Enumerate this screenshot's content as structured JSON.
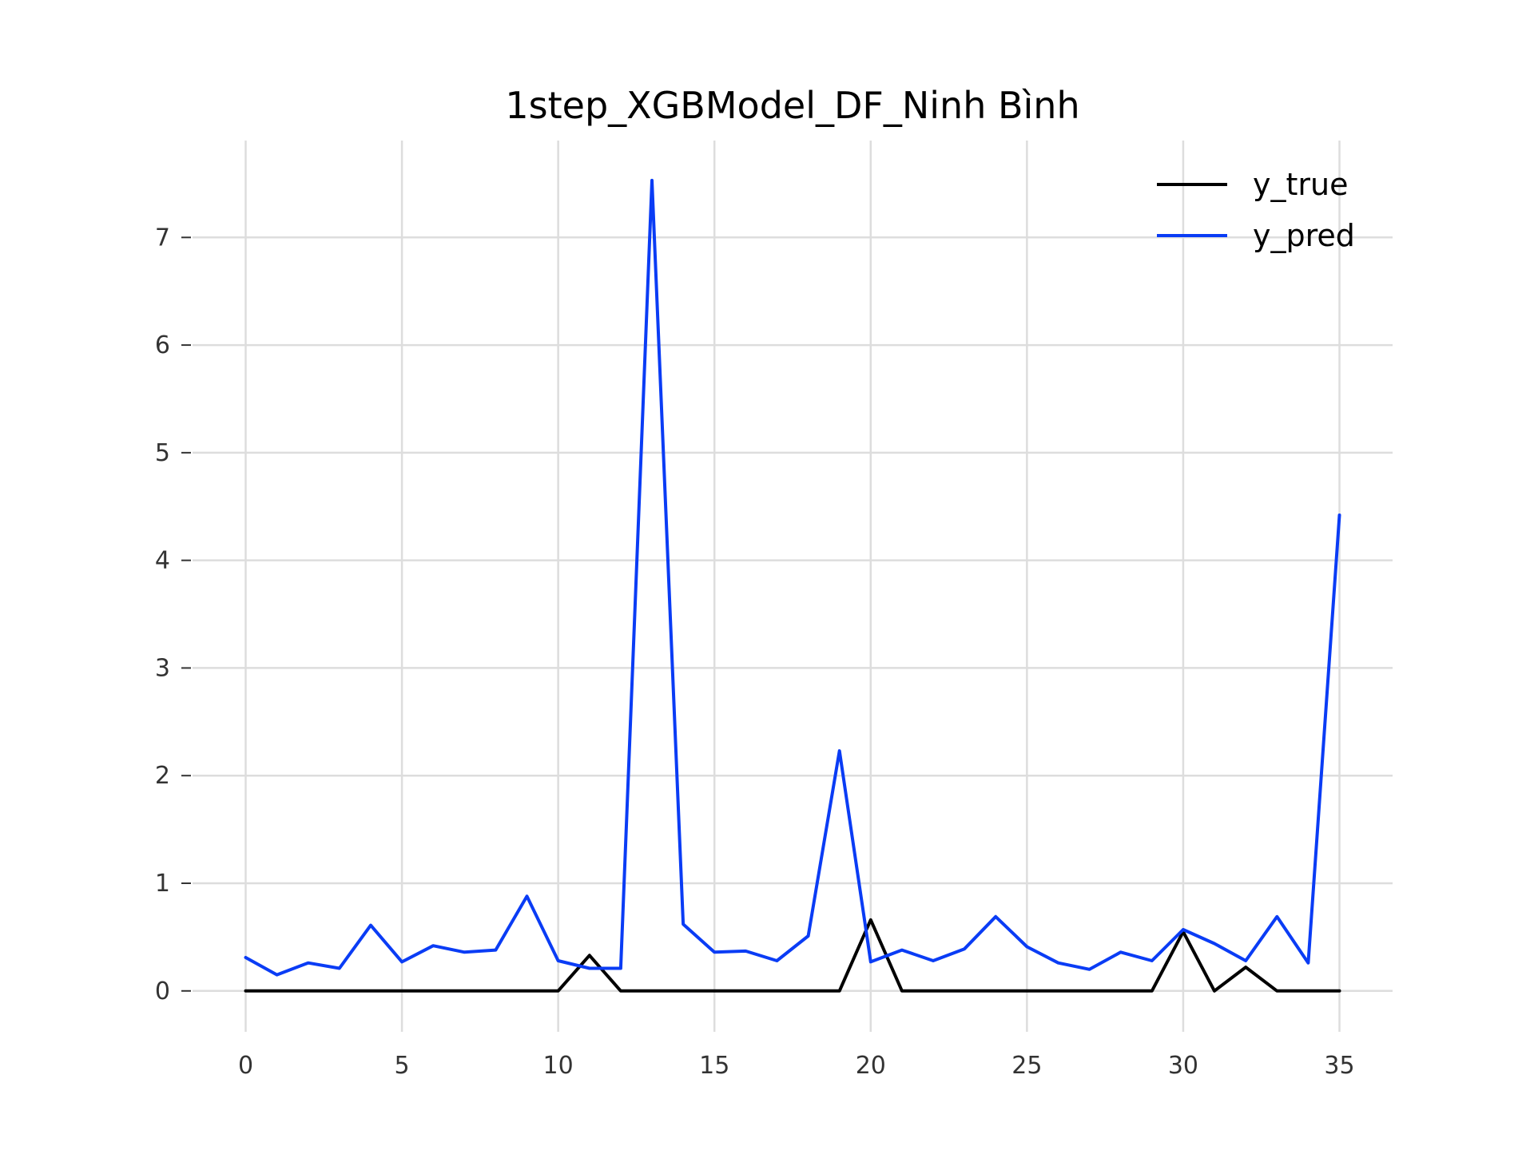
{
  "chart_data": {
    "type": "line",
    "title": "1step_XGBModel_DF_Ninh Bình",
    "xlabel": "",
    "ylabel": "",
    "xlim": [
      -1.7,
      36.7
    ],
    "ylim": [
      -0.38,
      7.9
    ],
    "x_ticks": [
      0,
      5,
      10,
      15,
      20,
      25,
      30,
      35
    ],
    "y_ticks": [
      0,
      1,
      2,
      3,
      4,
      5,
      6,
      7
    ],
    "grid": true,
    "legend_position": "top-right",
    "x": [
      0,
      1,
      2,
      3,
      4,
      5,
      6,
      7,
      8,
      9,
      10,
      11,
      12,
      13,
      14,
      15,
      16,
      17,
      18,
      19,
      20,
      21,
      22,
      23,
      24,
      25,
      26,
      27,
      28,
      29,
      30,
      31,
      32,
      33,
      34,
      35
    ],
    "series": [
      {
        "name": "y_true",
        "color": "#000000",
        "values": [
          0,
          0,
          0,
          0,
          0,
          0,
          0,
          0,
          0,
          0,
          0,
          0.33,
          0,
          0,
          0,
          0,
          0,
          0,
          0,
          0,
          0.66,
          0,
          0,
          0,
          0,
          0,
          0,
          0,
          0,
          0,
          0.55,
          0,
          0.22,
          0,
          0,
          0
        ]
      },
      {
        "name": "y_pred",
        "color": "#0a3cf5",
        "values": [
          0.31,
          0.15,
          0.26,
          0.21,
          0.61,
          0.27,
          0.42,
          0.36,
          0.38,
          0.88,
          0.28,
          0.21,
          0.21,
          7.53,
          0.62,
          0.36,
          0.37,
          0.28,
          0.51,
          2.23,
          0.27,
          0.38,
          0.28,
          0.39,
          0.69,
          0.41,
          0.26,
          0.2,
          0.36,
          0.28,
          0.57,
          0.44,
          0.28,
          0.69,
          0.26,
          4.42
        ]
      }
    ]
  }
}
